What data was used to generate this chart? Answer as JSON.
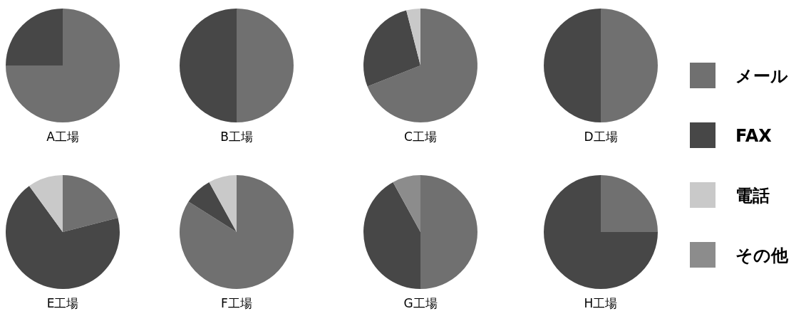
{
  "chart_data": {
    "type": "pie",
    "categories": [
      "メール",
      "FAX",
      "電話",
      "その他"
    ],
    "colors": [
      "#707070",
      "#474747",
      "#c9c9c9",
      "#8c8c8c"
    ],
    "legend": "right",
    "series": [
      {
        "name": "A工場",
        "values": [
          75,
          25,
          0,
          0
        ]
      },
      {
        "name": "B工場",
        "values": [
          50,
          50,
          0,
          0
        ]
      },
      {
        "name": "C工場",
        "values": [
          69,
          27,
          4,
          0
        ]
      },
      {
        "name": "D工場",
        "values": [
          50,
          50,
          0,
          0
        ]
      },
      {
        "name": "E工場",
        "values": [
          21,
          69,
          10,
          0
        ]
      },
      {
        "name": "F工場",
        "values": [
          84,
          8,
          8,
          0
        ]
      },
      {
        "name": "G工場",
        "values": [
          50,
          42,
          0,
          8
        ]
      },
      {
        "name": "H工場",
        "values": [
          25,
          75,
          0,
          0
        ]
      }
    ]
  }
}
